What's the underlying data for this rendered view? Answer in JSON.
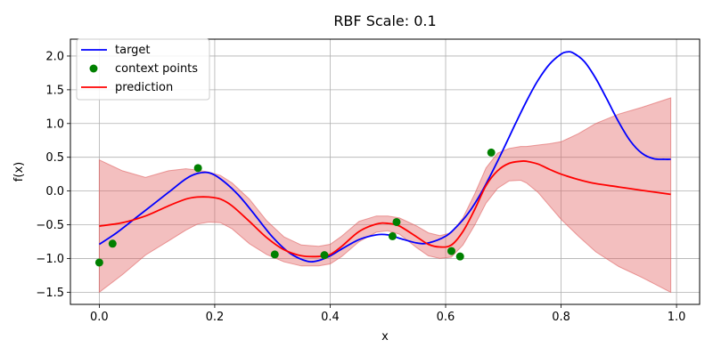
{
  "chart_data": {
    "type": "line",
    "title": "RBF Scale: 0.1",
    "xlabel": "x",
    "ylabel": "f(x)",
    "xlim": [
      -0.05,
      1.04
    ],
    "ylim": [
      -1.68,
      2.25
    ],
    "grid": true,
    "legend_position": "top-left",
    "x_ticks": [
      0.0,
      0.2,
      0.4,
      0.6,
      0.8,
      1.0
    ],
    "x_tick_labels": [
      "0.0",
      "0.2",
      "0.4",
      "0.6",
      "0.8",
      "1.0"
    ],
    "y_ticks": [
      -1.5,
      -1.0,
      -0.5,
      0.0,
      0.5,
      1.0,
      1.5,
      2.0
    ],
    "y_tick_labels": [
      "−1.5",
      "−1.0",
      "−0.5",
      "0.0",
      "0.5",
      "1.0",
      "1.5",
      "2.0"
    ],
    "series": [
      {
        "name": "target",
        "kind": "line",
        "color": "#0000ff",
        "x": [
          0.0,
          0.03,
          0.06,
          0.09,
          0.12,
          0.15,
          0.17,
          0.19,
          0.21,
          0.24,
          0.27,
          0.3,
          0.33,
          0.36,
          0.38,
          0.4,
          0.42,
          0.45,
          0.48,
          0.5,
          0.52,
          0.55,
          0.57,
          0.6,
          0.62,
          0.64,
          0.66,
          0.68,
          0.7,
          0.72,
          0.74,
          0.76,
          0.78,
          0.8,
          0.81,
          0.82,
          0.84,
          0.86,
          0.88,
          0.9,
          0.92,
          0.94,
          0.96,
          0.98,
          0.99
        ],
        "y": [
          -0.79,
          -0.62,
          -0.42,
          -0.22,
          -0.02,
          0.18,
          0.26,
          0.27,
          0.18,
          -0.05,
          -0.36,
          -0.68,
          -0.92,
          -1.04,
          -1.03,
          -0.96,
          -0.86,
          -0.72,
          -0.65,
          -0.65,
          -0.7,
          -0.77,
          -0.77,
          -0.67,
          -0.52,
          -0.32,
          -0.05,
          0.27,
          0.62,
          0.98,
          1.33,
          1.64,
          1.88,
          2.03,
          2.06,
          2.05,
          1.92,
          1.67,
          1.35,
          1.02,
          0.74,
          0.56,
          0.48,
          0.47,
          0.47
        ]
      },
      {
        "name": "prediction",
        "kind": "line",
        "color": "#ff0000",
        "x": [
          0.0,
          0.04,
          0.08,
          0.12,
          0.15,
          0.17,
          0.19,
          0.21,
          0.23,
          0.26,
          0.29,
          0.32,
          0.35,
          0.38,
          0.4,
          0.42,
          0.45,
          0.48,
          0.5,
          0.52,
          0.55,
          0.57,
          0.59,
          0.61,
          0.63,
          0.65,
          0.67,
          0.69,
          0.71,
          0.73,
          0.74,
          0.76,
          0.78,
          0.8,
          0.83,
          0.86,
          0.9,
          0.94,
          0.99
        ],
        "y": [
          -0.52,
          -0.47,
          -0.37,
          -0.22,
          -0.12,
          -0.09,
          -0.09,
          -0.12,
          -0.22,
          -0.45,
          -0.69,
          -0.87,
          -0.96,
          -0.97,
          -0.94,
          -0.82,
          -0.6,
          -0.49,
          -0.48,
          -0.52,
          -0.68,
          -0.79,
          -0.83,
          -0.8,
          -0.6,
          -0.28,
          0.08,
          0.3,
          0.41,
          0.44,
          0.44,
          0.4,
          0.32,
          0.25,
          0.17,
          0.11,
          0.06,
          0.01,
          -0.05
        ]
      },
      {
        "name": "context points",
        "kind": "scatter",
        "color": "#008000",
        "x": [
          0.0,
          0.023,
          0.171,
          0.304,
          0.39,
          0.508,
          0.515,
          0.61,
          0.625,
          0.679
        ],
        "y": [
          -1.06,
          -0.78,
          0.34,
          -0.94,
          -0.95,
          -0.67,
          -0.46,
          -0.89,
          -0.97,
          0.57
        ]
      }
    ],
    "band": {
      "color": "#e06060",
      "opacity": 0.4,
      "x": [
        0.0,
        0.04,
        0.08,
        0.12,
        0.15,
        0.17,
        0.19,
        0.21,
        0.23,
        0.26,
        0.29,
        0.32,
        0.35,
        0.38,
        0.4,
        0.42,
        0.45,
        0.48,
        0.5,
        0.52,
        0.55,
        0.57,
        0.59,
        0.61,
        0.63,
        0.65,
        0.67,
        0.69,
        0.71,
        0.73,
        0.74,
        0.76,
        0.78,
        0.8,
        0.83,
        0.86,
        0.9,
        0.94,
        0.99
      ],
      "upper": [
        0.46,
        0.3,
        0.2,
        0.3,
        0.33,
        0.31,
        0.28,
        0.23,
        0.12,
        -0.12,
        -0.44,
        -0.68,
        -0.8,
        -0.82,
        -0.79,
        -0.67,
        -0.45,
        -0.37,
        -0.37,
        -0.4,
        -0.52,
        -0.62,
        -0.66,
        -0.62,
        -0.4,
        -0.05,
        0.34,
        0.56,
        0.63,
        0.66,
        0.66,
        0.68,
        0.7,
        0.73,
        0.85,
        1.0,
        1.14,
        1.24,
        1.38
      ],
      "lower": [
        -1.5,
        -1.24,
        -0.95,
        -0.74,
        -0.58,
        -0.49,
        -0.46,
        -0.47,
        -0.56,
        -0.78,
        -0.94,
        -1.05,
        -1.11,
        -1.11,
        -1.08,
        -0.97,
        -0.75,
        -0.61,
        -0.59,
        -0.64,
        -0.84,
        -0.96,
        -1.0,
        -0.98,
        -0.8,
        -0.51,
        -0.18,
        0.04,
        0.15,
        0.16,
        0.12,
        -0.02,
        -0.22,
        -0.42,
        -0.67,
        -0.9,
        -1.12,
        -1.28,
        -1.5
      ]
    }
  }
}
